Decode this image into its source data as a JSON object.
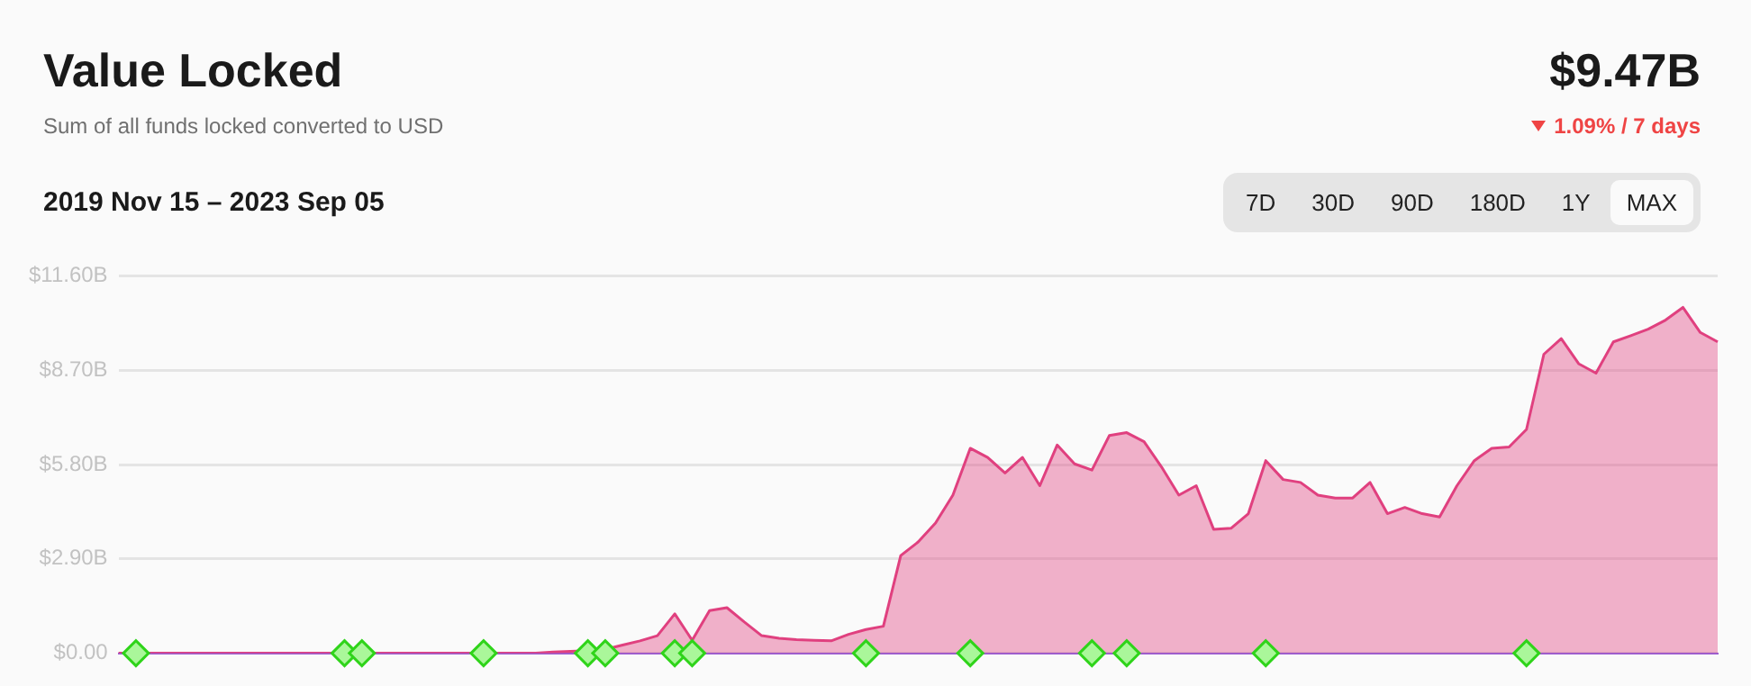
{
  "chart_data": {
    "type": "area",
    "title": "Value Locked",
    "subtitle": "Sum of all funds locked converted to USD",
    "annotations": [
      "$9.47B",
      "1.09% / 7 days",
      "2019 Nov 15 – 2023 Sep 05",
      "7D",
      "30D",
      "90D",
      "180D",
      "1Y",
      "MAX"
    ],
    "categories": [
      null,
      null,
      null,
      null,
      null,
      null,
      null,
      null,
      null,
      null,
      null,
      null,
      null,
      null,
      null,
      null,
      null,
      null,
      null,
      null,
      null,
      null,
      null,
      null,
      null,
      null,
      null,
      null,
      null,
      null,
      null,
      null,
      null,
      null,
      null,
      null,
      null,
      null,
      null,
      null,
      null,
      null,
      null,
      null,
      null,
      null,
      null,
      null,
      null,
      null,
      null,
      null,
      null,
      null,
      null,
      null,
      null,
      null,
      null,
      null,
      null,
      null,
      null,
      null,
      null,
      null,
      null,
      null,
      null,
      null,
      null,
      null,
      null,
      null,
      null,
      null,
      null,
      null,
      null,
      null,
      null,
      null,
      null,
      null,
      null,
      null,
      null,
      null,
      null,
      null,
      null,
      null,
      null
    ],
    "ylim": [
      0,
      11.6
    ],
    "yticks": [
      {
        "value": 0,
        "label": "$0.00"
      },
      {
        "value": 2.9,
        "label": "$2.90B"
      },
      {
        "value": 5.8,
        "label": "$5.80B"
      },
      {
        "value": 8.7,
        "label": "$8.70B"
      },
      {
        "value": 11.6,
        "label": "$11.60B"
      }
    ],
    "grid": "y",
    "tick_labels": "y",
    "marker": "none",
    "series": [
      {
        "color": "#e0407f",
        "values": [
          0,
          0,
          0,
          0,
          0,
          0,
          0,
          0,
          0,
          0,
          0,
          0,
          0,
          0,
          0,
          0,
          0,
          0,
          0,
          0,
          0,
          0,
          0,
          0,
          0,
          0.04,
          0.06,
          0.08,
          0.12,
          0.25,
          0.38,
          0.54,
          1.21,
          0.4,
          1.31,
          1.4,
          0.96,
          0.54,
          0.46,
          0.42,
          0.4,
          0.38,
          0.58,
          0.73,
          0.83,
          3.0,
          3.42,
          4.0,
          4.86,
          6.3,
          6.02,
          5.54,
          6.02,
          5.15,
          6.4,
          5.82,
          5.63,
          6.69,
          6.78,
          6.5,
          5.73,
          4.86,
          5.15,
          3.81,
          3.84,
          4.29,
          5.92,
          5.34,
          5.25,
          4.86,
          4.77,
          4.77,
          5.25,
          4.29,
          4.48,
          4.29,
          4.19,
          5.15,
          5.92,
          6.3,
          6.34,
          6.88,
          9.19,
          9.67,
          8.9,
          8.61,
          9.57,
          9.76,
          9.96,
          10.24,
          10.63,
          9.86,
          9.57
        ]
      },
      {
        "type": "scatter",
        "color": "#aaf79a",
        "marker": "diamond",
        "values": [
          null,
          0,
          null,
          null,
          null,
          null,
          null,
          null,
          null,
          null,
          null,
          null,
          null,
          0,
          0,
          null,
          null,
          null,
          null,
          null,
          null,
          0,
          null,
          null,
          null,
          null,
          null,
          0,
          0,
          null,
          null,
          null,
          0,
          0,
          null,
          null,
          null,
          null,
          null,
          null,
          null,
          null,
          null,
          0,
          null,
          null,
          null,
          null,
          null,
          0,
          null,
          null,
          null,
          null,
          null,
          null,
          0,
          null,
          0,
          null,
          null,
          null,
          null,
          null,
          null,
          null,
          0,
          null,
          null,
          null,
          null,
          null,
          null,
          null,
          null,
          null,
          null,
          null,
          null,
          null,
          null,
          0,
          null,
          null,
          null,
          null,
          null,
          null,
          null,
          null,
          null,
          null,
          null
        ]
      }
    ]
  }
}
